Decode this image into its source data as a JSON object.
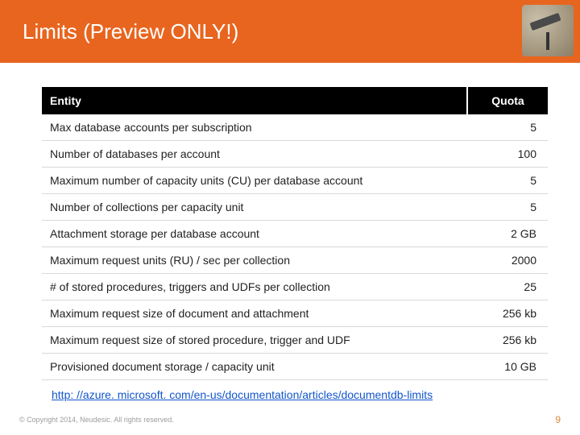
{
  "header": {
    "title": "Limits (Preview ONLY!)"
  },
  "table": {
    "columns": {
      "entity": "Entity",
      "quota": "Quota"
    },
    "rows": [
      {
        "entity": "Max database accounts per subscription",
        "quota": "5"
      },
      {
        "entity": "Number of databases per account",
        "quota": "100"
      },
      {
        "entity": "Maximum number of capacity units (CU) per database account",
        "quota": "5"
      },
      {
        "entity": "Number of collections per capacity unit",
        "quota": "5"
      },
      {
        "entity": "Attachment storage per database account",
        "quota": "2 GB"
      },
      {
        "entity": "Maximum request units (RU) / sec per collection",
        "quota": "2000"
      },
      {
        "entity": "# of stored procedures, triggers and UDFs per collection",
        "quota": "25"
      },
      {
        "entity": "Maximum request size of document and attachment",
        "quota": "256 kb"
      },
      {
        "entity": "Maximum request size of stored procedure, trigger and UDF",
        "quota": "256 kb"
      },
      {
        "entity": "Provisioned document storage / capacity unit",
        "quota": "10 GB"
      }
    ]
  },
  "link": {
    "text": "http: //azure. microsoft. com/en-us/documentation/articles/documentdb-limits"
  },
  "footer": {
    "copyright": "© Copyright 2014, Neudesic. All rights reserved.",
    "page": "9"
  },
  "colors": {
    "header_bg": "#e8651f",
    "table_header_bg": "#000000",
    "link_color": "#1155cc",
    "page_num_color": "#dc8b3f"
  }
}
